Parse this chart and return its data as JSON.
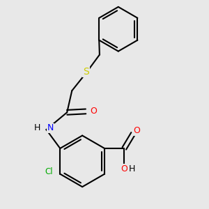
{
  "background_color": "#e8e8e8",
  "atom_colors": {
    "C": "#000000",
    "H": "#000000",
    "N": "#0000ff",
    "O": "#ff0000",
    "S": "#cccc00",
    "Cl": "#00aa00"
  },
  "bond_color": "#000000",
  "bond_width": 1.5,
  "figsize": [
    3.0,
    3.0
  ],
  "dpi": 100
}
